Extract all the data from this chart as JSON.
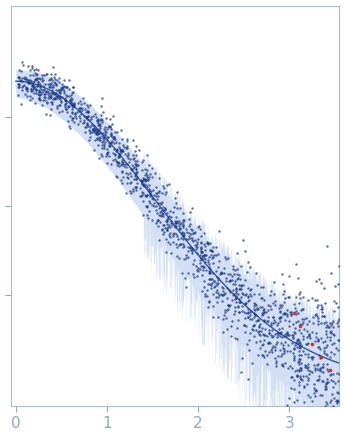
{
  "title": "",
  "xlabel": "",
  "ylabel": "",
  "xlim": [
    -0.05,
    3.55
  ],
  "ylim": [
    -0.005,
    0.085
  ],
  "x_ticks": [
    0,
    1,
    2,
    3
  ],
  "background_color": "#ffffff",
  "dot_color": "#1a3a8a",
  "dot_color_outlier": "#cc2222",
  "error_band_color": "#aec6e8",
  "curve_color": "#1a3a8a",
  "dot_size": 3,
  "curve_linewidth": 1.0,
  "seed": 42,
  "y_ticks": [
    0.02,
    0.04,
    0.06
  ],
  "tick_color": "#88aacc",
  "spine_color": "#aabbdd"
}
